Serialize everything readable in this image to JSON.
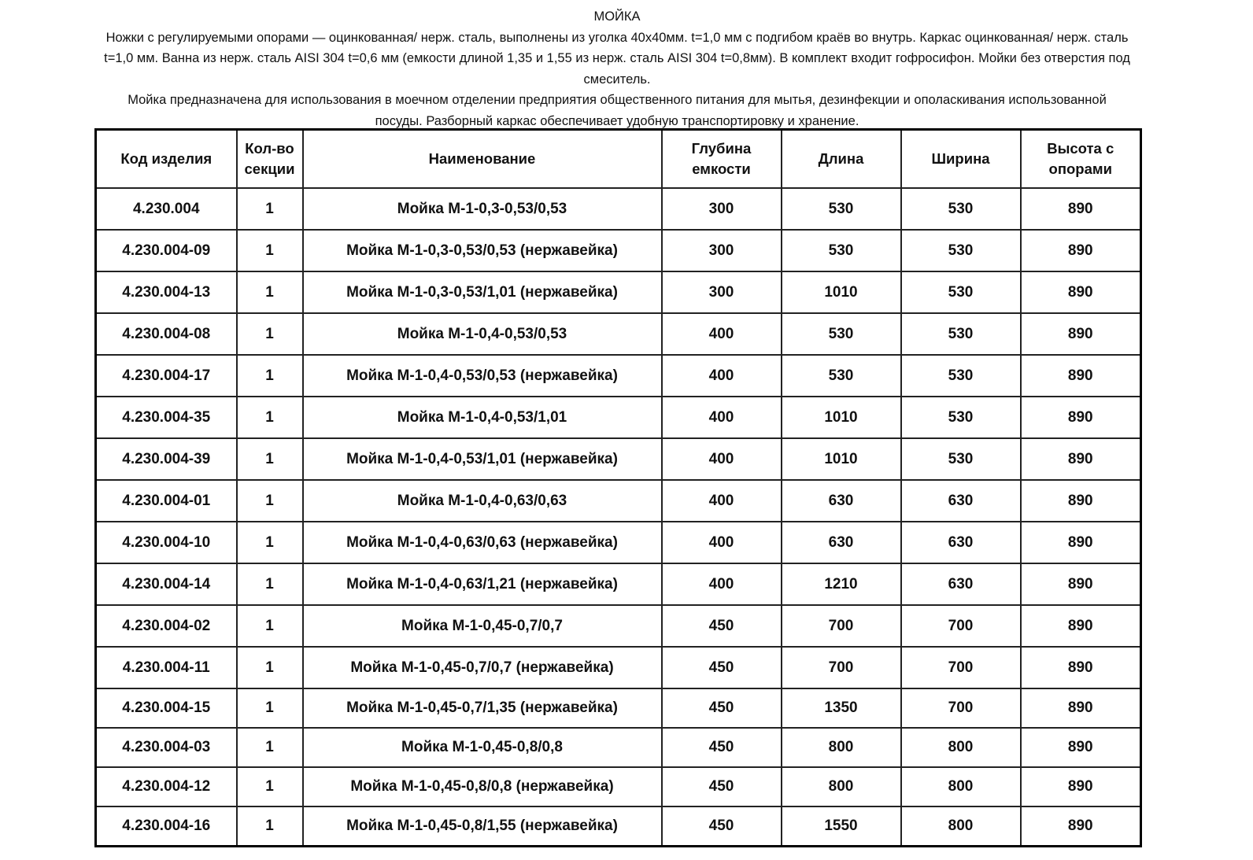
{
  "intro": {
    "title": "МОЙКА",
    "paragraph1": "Ножки с регулируемыми опорами — оцинкованная/ нерж.  сталь, выполнены из уголка 40х40мм. t=1,0 мм с подгибом краёв во внутрь. Каркас оцинкованная/ нерж.  сталь t=1,0 мм. Ванна из нерж. сталь AISI 304  t=0,6 мм (емкости длиной 1,35 и 1,55 из нерж. сталь AISI 304 t=0,8мм). В комплект входит гофросифон. Мойки без отверстия под смеситель.",
    "paragraph2": "Мойка предназначена для использования в моечном отделении предприятия общественного питания для мытья, дезинфекции и ополаскивания использованной посуды. Разборный каркас обеспечивает удобную транспортировку и хранение."
  },
  "table": {
    "headers": [
      "Код изделия",
      "Кол-во секции",
      "Наименование",
      "Глубина емкости",
      "Длина",
      "Ширина",
      "Высота с опорами"
    ],
    "rows": [
      [
        "4.230.004",
        "1",
        "Мойка М-1-0,3-0,53/0,53",
        "300",
        "530",
        "530",
        "890"
      ],
      [
        "4.230.004-09",
        "1",
        "Мойка М-1-0,3-0,53/0,53 (нержавейка)",
        "300",
        "530",
        "530",
        "890"
      ],
      [
        "4.230.004-13",
        "1",
        "Мойка М-1-0,3-0,53/1,01 (нержавейка)",
        "300",
        "1010",
        "530",
        "890"
      ],
      [
        "4.230.004-08",
        "1",
        "Мойка М-1-0,4-0,53/0,53",
        "400",
        "530",
        "530",
        "890"
      ],
      [
        "4.230.004-17",
        "1",
        "Мойка М-1-0,4-0,53/0,53 (нержавейка)",
        "400",
        "530",
        "530",
        "890"
      ],
      [
        "4.230.004-35",
        "1",
        "Мойка М-1-0,4-0,53/1,01",
        "400",
        "1010",
        "530",
        "890"
      ],
      [
        "4.230.004-39",
        "1",
        "Мойка М-1-0,4-0,53/1,01 (нержавейка)",
        "400",
        "1010",
        "530",
        "890"
      ],
      [
        "4.230.004-01",
        "1",
        "Мойка М-1-0,4-0,63/0,63",
        "400",
        "630",
        "630",
        "890"
      ],
      [
        "4.230.004-10",
        "1",
        "Мойка М-1-0,4-0,63/0,63 (нержавейка)",
        "400",
        "630",
        "630",
        "890"
      ],
      [
        "4.230.004-14",
        "1",
        "Мойка М-1-0,4-0,63/1,21 (нержавейка)",
        "400",
        "1210",
        "630",
        "890"
      ],
      [
        "4.230.004-02",
        "1",
        "Мойка М-1-0,45-0,7/0,7",
        "450",
        "700",
        "700",
        "890"
      ],
      [
        "4.230.004-11",
        "1",
        "Мойка М-1-0,45-0,7/0,7 (нержавейка)",
        "450",
        "700",
        "700",
        "890"
      ],
      [
        "4.230.004-15",
        "1",
        "Мойка М-1-0,45-0,7/1,35 (нержавейка)",
        "450",
        "1350",
        "700",
        "890"
      ],
      [
        "4.230.004-03",
        "1",
        "Мойка М-1-0,45-0,8/0,8",
        "450",
        "800",
        "800",
        "890"
      ],
      [
        "4.230.004-12",
        "1",
        "Мойка М-1-0,45-0,8/0,8 (нержавейка)",
        "450",
        "800",
        "800",
        "890"
      ],
      [
        "4.230.004-16",
        "1",
        "Мойка М-1-0,45-0,8/1,55 (нержавейка)",
        "450",
        "1550",
        "800",
        "890"
      ]
    ]
  }
}
